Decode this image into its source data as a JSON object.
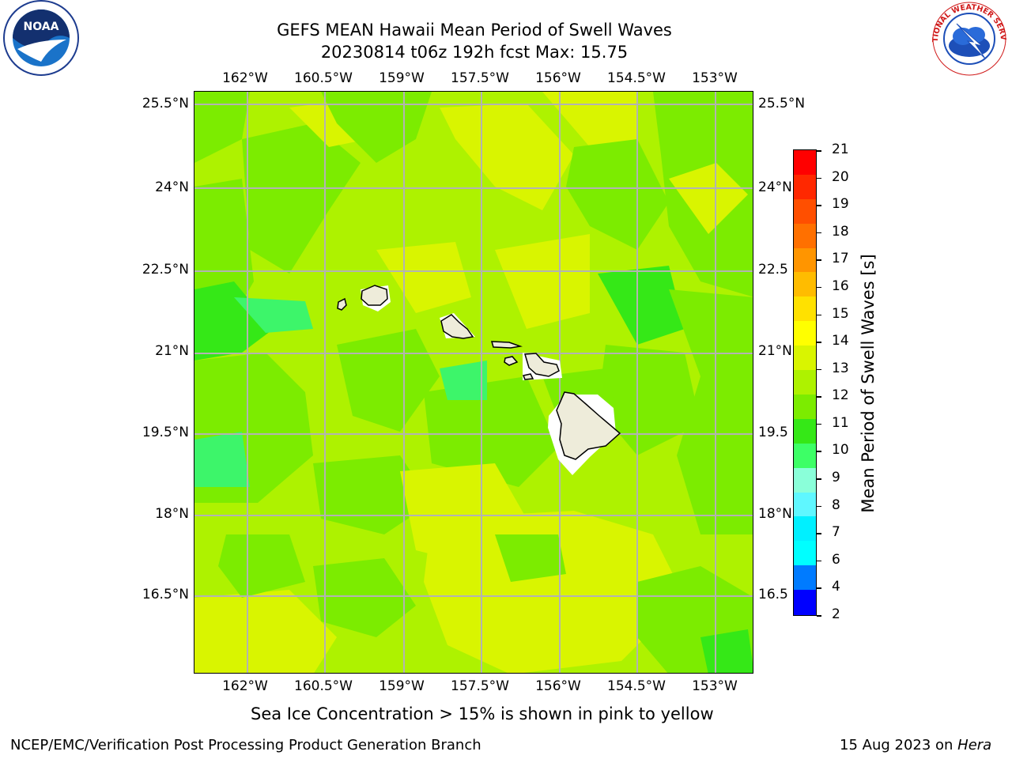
{
  "title": {
    "line1": "GEFS MEAN Hawaii Mean Period of Swell Waves",
    "line2": "20230814 t06z 192h fcst   Max: 15.75"
  },
  "map": {
    "lon_labels": [
      "162°W",
      "160.5°W",
      "159°W",
      "157.5°W",
      "156°W",
      "154.5°W",
      "153°W"
    ],
    "lat_labels_left": [
      "25.5°N",
      "24°N",
      "22.5°N",
      "21°N",
      "19.5°N",
      "18°N",
      "16.5°N"
    ],
    "lat_labels_right": [
      "25.5°N",
      "24°N",
      "22.5",
      "21°N",
      "19.5",
      "18°N",
      "16.5"
    ],
    "field_colors": {
      "yellow": "#d9f500",
      "yellow_green": "#aef200",
      "green": "#7cec00",
      "bright_green": "#35e817",
      "seafoam": "#3df56a",
      "land": "#eeecda"
    }
  },
  "colorbar": {
    "title": "Mean Period of Swell Waves [s]",
    "ticks": [
      "21",
      "20",
      "19",
      "18",
      "17",
      "16",
      "15",
      "14",
      "13",
      "12",
      "11",
      "10",
      "9",
      "8",
      "7",
      "6",
      "4",
      "2"
    ],
    "tick_labels_shown": [
      "21",
      "20",
      "19",
      "18",
      "17",
      "16",
      "15",
      "14",
      "13",
      "12",
      "11",
      "10",
      "9",
      "8",
      "7",
      "6",
      "4",
      "2"
    ],
    "colors_top_to_bottom": [
      "#ff0000",
      "#ff2800",
      "#ff4f00",
      "#ff7000",
      "#ff9500",
      "#ffbc00",
      "#ffe100",
      "#ffff00",
      "#d9f500",
      "#aef200",
      "#7cec00",
      "#35e817",
      "#3dff66",
      "#8affd9",
      "#5ff7ff",
      "#00f0ff",
      "#00ffff",
      "#007bff",
      "#0000ff"
    ]
  },
  "footer": {
    "sea_ice_note": "Sea Ice Concentration > 15% is shown in pink to yellow",
    "credit": "NCEP/EMC/Verification Post Processing Product Generation Branch",
    "date_prefix": "15 Aug 2023 on ",
    "machine": "Hera"
  },
  "logos": {
    "noaa_text": "NOAA",
    "nws_text": "NATIONAL WEATHER SERVICE"
  }
}
